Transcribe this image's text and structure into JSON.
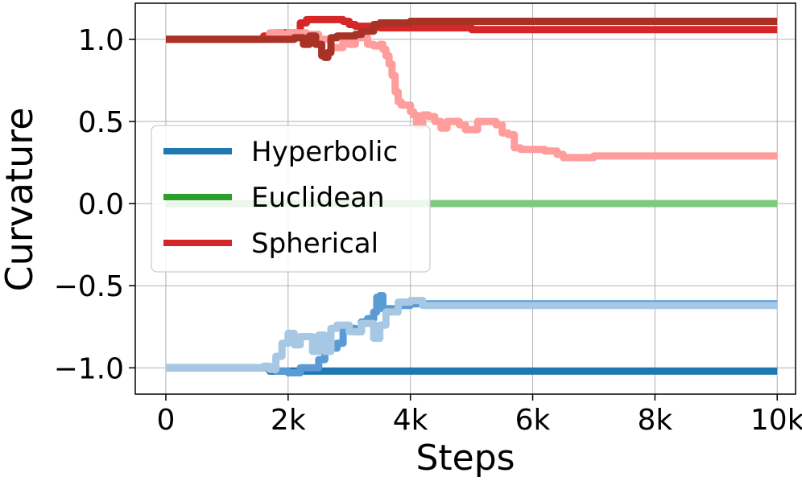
{
  "chart_data": {
    "type": "line",
    "xlabel": "Steps",
    "ylabel": "Curvature",
    "xlim": [
      -500,
      10300
    ],
    "ylim": [
      -1.16,
      1.22
    ],
    "grid": true,
    "x_ticks": [
      0,
      2000,
      4000,
      6000,
      8000,
      10000
    ],
    "x_tick_labels": [
      "0",
      "2k",
      "4k",
      "6k",
      "8k",
      "10k"
    ],
    "y_ticks": [
      -1.0,
      -0.5,
      0.0,
      0.5,
      1.0
    ],
    "y_tick_labels": [
      "−1.0",
      "−0.5",
      "0.0",
      "0.5",
      "1.0"
    ],
    "legend": {
      "placement": "center-left",
      "entries": [
        {
          "label": "Hyperbolic",
          "color": "#1f77b4"
        },
        {
          "label": "Euclidean",
          "color": "#2ca02c"
        },
        {
          "label": "Spherical",
          "color": "#d62728"
        }
      ]
    },
    "series": [
      {
        "color": "#1f77b4",
        "x": [
          0,
          700,
          1000,
          1400,
          1500,
          1700,
          1800,
          1900,
          2000,
          2100,
          10000
        ],
        "y": [
          -1.0,
          -1.0,
          -1.0,
          -1.0,
          -1.0,
          -1.02,
          -1.02,
          -1.02,
          -1.02,
          -1.02,
          -1.02
        ]
      },
      {
        "color": "#5b9bd5",
        "x": [
          0,
          1600,
          1800,
          2000,
          2200,
          2500,
          2600,
          2800,
          2900,
          3100,
          3200,
          3300,
          3400,
          3450,
          3500,
          3550,
          3700,
          3800,
          3900,
          4000,
          4200,
          10000
        ],
        "y": [
          -1.0,
          -1.0,
          -1.02,
          -1.03,
          -1.0,
          -0.95,
          -0.88,
          -0.85,
          -0.76,
          -0.78,
          -0.72,
          -0.7,
          -0.66,
          -0.57,
          -0.56,
          -0.64,
          -0.64,
          -0.62,
          -0.62,
          -0.61,
          -0.61,
          -0.61
        ]
      },
      {
        "color": "#a6c8e4",
        "x": [
          0,
          1500,
          1600,
          1700,
          1800,
          1900,
          2000,
          2100,
          2200,
          2400,
          2500,
          2600,
          2700,
          2800,
          3000,
          3200,
          3400,
          3500,
          3600,
          3800,
          4000,
          4200,
          4400,
          10000
        ],
        "y": [
          -1.0,
          -1.0,
          -0.99,
          -1.01,
          -0.93,
          -0.85,
          -0.79,
          -0.86,
          -0.81,
          -0.9,
          -0.8,
          -0.9,
          -0.76,
          -0.74,
          -0.78,
          -0.73,
          -0.82,
          -0.74,
          -0.66,
          -0.6,
          -0.59,
          -0.62,
          -0.62,
          -0.62
        ]
      },
      {
        "color": "#7fc97f",
        "x": [
          0,
          10000
        ],
        "y": [
          0.0,
          0.0
        ]
      },
      {
        "color": "#d62728",
        "x": [
          0,
          1400,
          1600,
          1800,
          2100,
          2200,
          2300,
          2400,
          2700,
          2900,
          3000,
          3100,
          3300,
          3500,
          4000,
          5000,
          10000
        ],
        "y": [
          1.0,
          1.0,
          1.02,
          1.04,
          1.04,
          1.1,
          1.12,
          1.12,
          1.12,
          1.11,
          1.09,
          1.08,
          1.08,
          1.07,
          1.07,
          1.06,
          1.06
        ]
      },
      {
        "color": "#ff9c9c",
        "x": [
          0,
          1500,
          1700,
          1900,
          2000,
          2300,
          2500,
          2700,
          2900,
          3000,
          3100,
          3300,
          3400,
          3500,
          3550,
          3600,
          3650,
          3700,
          3750,
          3800,
          3850,
          3900,
          4000,
          4050,
          4100,
          4200,
          4300,
          4400,
          4500,
          4600,
          4700,
          4800,
          4900,
          5100,
          5200,
          5400,
          5500,
          5600,
          5700,
          5800,
          6000,
          6200,
          6400,
          6500,
          6600,
          6800,
          7000,
          7100,
          10000
        ],
        "y": [
          1.0,
          1.0,
          1.04,
          1.03,
          1.04,
          1.03,
          1.0,
          0.95,
          0.99,
          0.97,
          1.01,
          0.97,
          0.96,
          0.97,
          0.94,
          0.9,
          0.85,
          0.78,
          0.68,
          0.62,
          0.6,
          0.6,
          0.56,
          0.54,
          0.48,
          0.54,
          0.53,
          0.5,
          0.46,
          0.5,
          0.5,
          0.48,
          0.45,
          0.5,
          0.5,
          0.48,
          0.43,
          0.42,
          0.34,
          0.33,
          0.33,
          0.32,
          0.3,
          0.28,
          0.28,
          0.28,
          0.29,
          0.29,
          0.29
        ]
      },
      {
        "color": "#a93226",
        "x": [
          0,
          1500,
          1900,
          2100,
          2250,
          2350,
          2450,
          2550,
          2600,
          2650,
          2700,
          2800,
          2900,
          3000,
          3100,
          3200,
          3300,
          3400,
          3500,
          3700,
          4000,
          10000
        ],
        "y": [
          1.0,
          1.0,
          1.0,
          1.01,
          0.97,
          1.02,
          0.97,
          0.9,
          0.89,
          0.92,
          1.01,
          1.02,
          1.02,
          1.02,
          1.03,
          1.05,
          1.05,
          1.09,
          1.1,
          1.1,
          1.11,
          1.11
        ]
      }
    ]
  }
}
